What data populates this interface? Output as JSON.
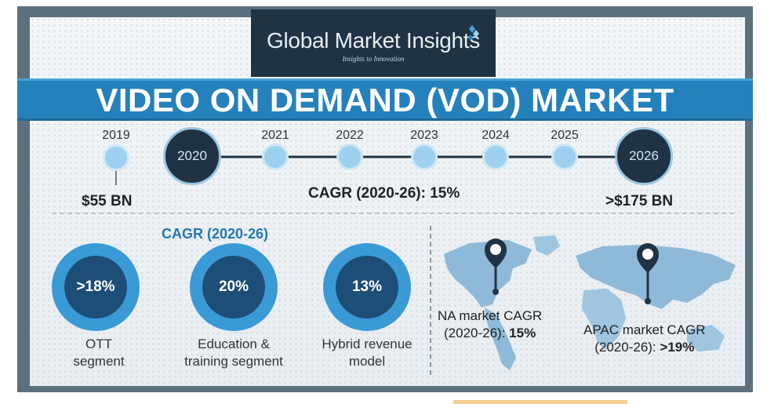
{
  "logo": {
    "name": "Global Market Insights",
    "tagline": "Insights to Innovation"
  },
  "title": "VIDEO ON DEMAND (VOD) MARKET",
  "timeline": {
    "years": [
      "2019",
      "2020",
      "2021",
      "2022",
      "2023",
      "2024",
      "2025",
      "2026"
    ],
    "start_value": "$55 BN",
    "end_value": ">$175 BN",
    "cagr": "CAGR (2020-26): 15%"
  },
  "segments": {
    "heading": "CAGR (2020-26)",
    "items": [
      {
        "value": ">18%",
        "label_line1": "OTT",
        "label_line2": "segment"
      },
      {
        "value": "20%",
        "label_line1": "Education &",
        "label_line2": "training segment"
      },
      {
        "value": "13%",
        "label_line1": "Hybrid revenue",
        "label_line2": "model"
      }
    ]
  },
  "regions": [
    {
      "line1": "NA market CAGR",
      "line2_prefix": "(2020-26): ",
      "line2_value": "15%"
    },
    {
      "line1": "APAC market CAGR",
      "line2_prefix": "(2020-26): ",
      "line2_value": ">19%"
    }
  ],
  "colors": {
    "banner": "#2481bb",
    "navy": "#1f3345",
    "light_blue": "#9ed0ef",
    "ring": "#3a9ad6"
  }
}
